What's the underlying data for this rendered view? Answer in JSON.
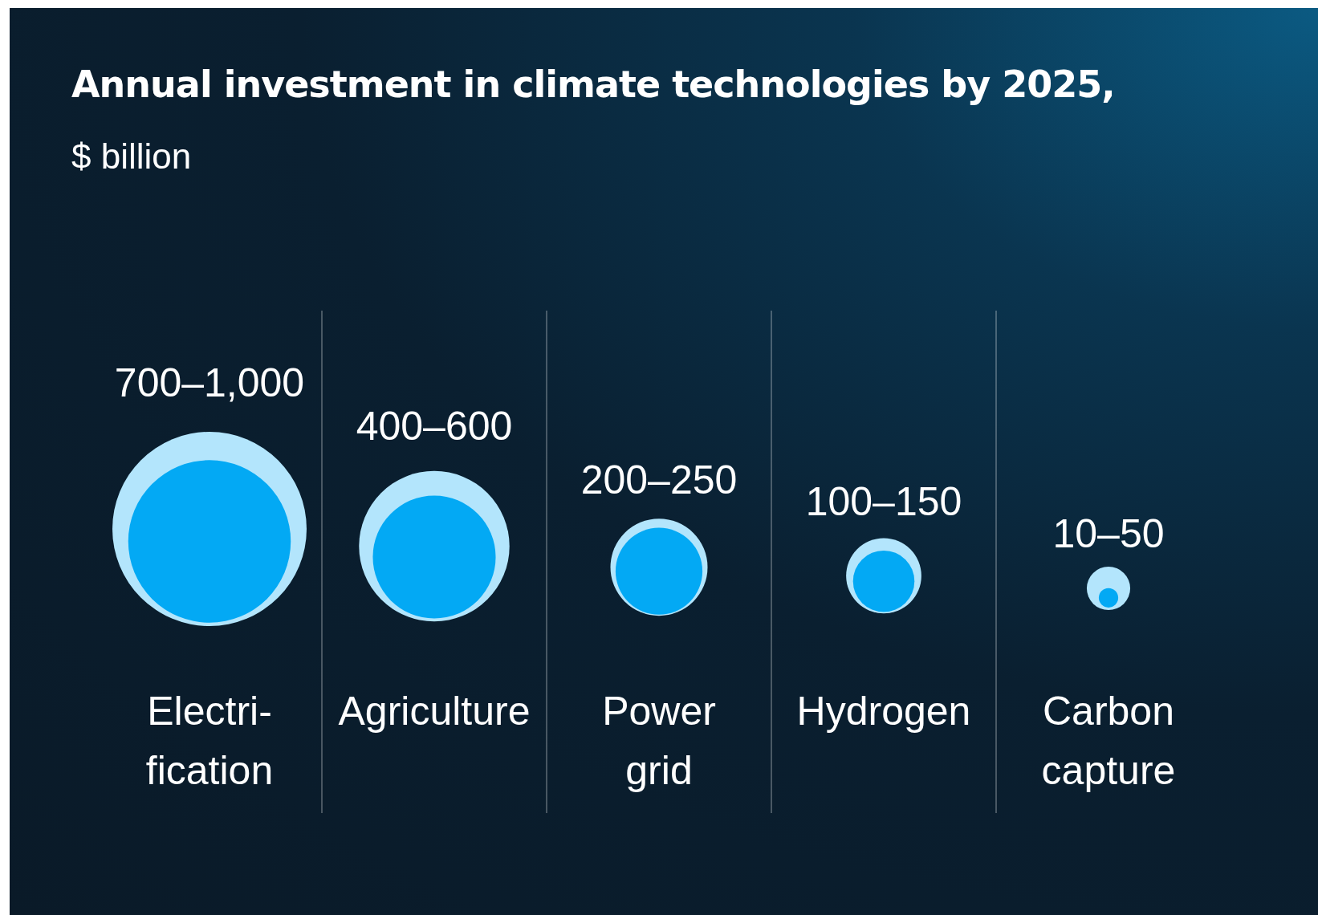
{
  "chart_data": {
    "type": "other",
    "title": "Annual investment in climate technologies by 2025,",
    "subtitle": "$ billion",
    "categories": [
      "Electri-\nfication",
      "Agriculture",
      "Power\ngrid",
      "Hydrogen",
      "Carbon\ncapture"
    ],
    "series": [
      {
        "color": "#b3e5fc",
        "values": [
          1000,
          600,
          250,
          150,
          50
        ],
        "value_labels": [
          "1,000",
          "600",
          "250",
          "150",
          "50"
        ]
      },
      {
        "color": "#03a9f4",
        "values": [
          700,
          400,
          200,
          100,
          10
        ],
        "value_labels": [
          "700–",
          "400–",
          "200–",
          "100–",
          "10–"
        ]
      }
    ]
  }
}
